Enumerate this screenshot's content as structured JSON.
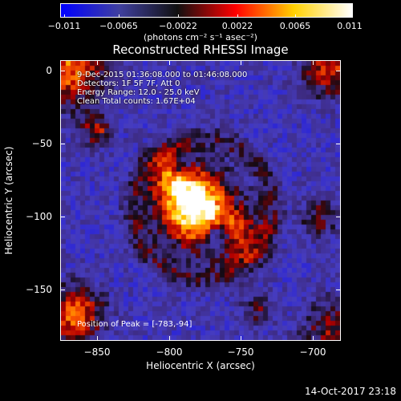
{
  "colorbar": {
    "ticks": [
      "−0.011",
      "−0.0065",
      "−0.0022",
      "0.0022",
      "0.0065",
      "0.011"
    ],
    "units": "(photons cm⁻² s⁻¹ asec⁻²)",
    "colors": [
      "#0000ff",
      "#4040a0",
      "#101010",
      "#ff0000",
      "#ffd000",
      "#ffffff"
    ]
  },
  "title": "Reconstructed RHESSI Image",
  "info": {
    "line1": "9-Dec-2015 01:36:08.000 to 01:46:08.000",
    "line2": "Detectors: 1F 5F 7F, Att 0",
    "line3": "Energy Range: 12.0 - 25.0 keV",
    "line4": "Clean     Total counts: 1.67E+04"
  },
  "peak_label": "Position of Peak = [-783,-94]",
  "axes": {
    "x_label": "Heliocentric X (arcsec)",
    "y_label": "Heliocentric Y (arcsec)",
    "x_ticks": [
      "−850",
      "−800",
      "−750",
      "−700"
    ],
    "y_ticks": [
      "0",
      "−50",
      "−100",
      "−150"
    ],
    "x_range": [
      -877,
      -682
    ],
    "y_range": [
      -186,
      9
    ]
  },
  "timestamp": "14-Oct-2017 23:18"
}
